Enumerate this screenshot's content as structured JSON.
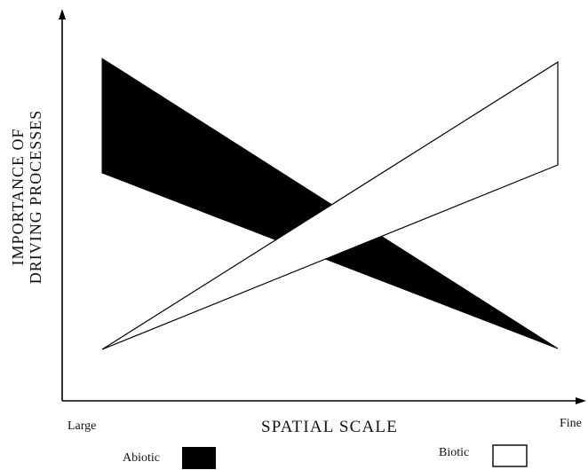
{
  "diagram": {
    "y_axis_label_line1": "IMPORTANCE OF",
    "y_axis_label_line2": "DRIVING PROCESSES",
    "x_axis_label": "SPATIAL SCALE",
    "x_tick_left": "Large",
    "x_tick_right": "Fine",
    "colors": {
      "abiotic_fill": "#000000",
      "biotic_fill": "#ffffff",
      "stroke": "#000000"
    },
    "legend": {
      "abiotic_label": "Abiotic",
      "biotic_label": "Biotic"
    }
  }
}
